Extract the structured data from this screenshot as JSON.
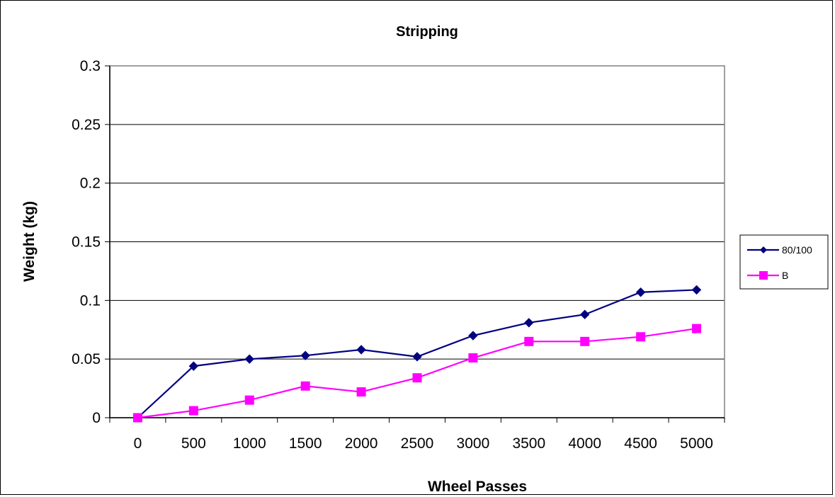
{
  "chart_data": {
    "type": "line",
    "title": "Stripping",
    "xlabel": "Wheel Passes",
    "ylabel": "Weight (kg)",
    "categories": [
      "0",
      "500",
      "1000",
      "1500",
      "2000",
      "2500",
      "3000",
      "3500",
      "4000",
      "4500",
      "5000"
    ],
    "ylim": [
      0,
      0.3
    ],
    "yticks": [
      "0",
      "0.05",
      "0.1",
      "0.15",
      "0.2",
      "0.25",
      "0.3"
    ],
    "grid": "horizontal major gridlines",
    "legend_position": "right",
    "series": [
      {
        "name": "80/100",
        "color": "#000080",
        "marker": "diamond",
        "values": [
          0,
          0.044,
          0.05,
          0.053,
          0.058,
          0.052,
          0.07,
          0.081,
          0.088,
          0.107,
          0.109
        ]
      },
      {
        "name": "B",
        "color": "#ff00ff",
        "marker": "square",
        "values": [
          0,
          0.006,
          0.015,
          0.027,
          0.022,
          0.034,
          0.051,
          0.065,
          0.065,
          0.069,
          0.076
        ]
      }
    ]
  }
}
